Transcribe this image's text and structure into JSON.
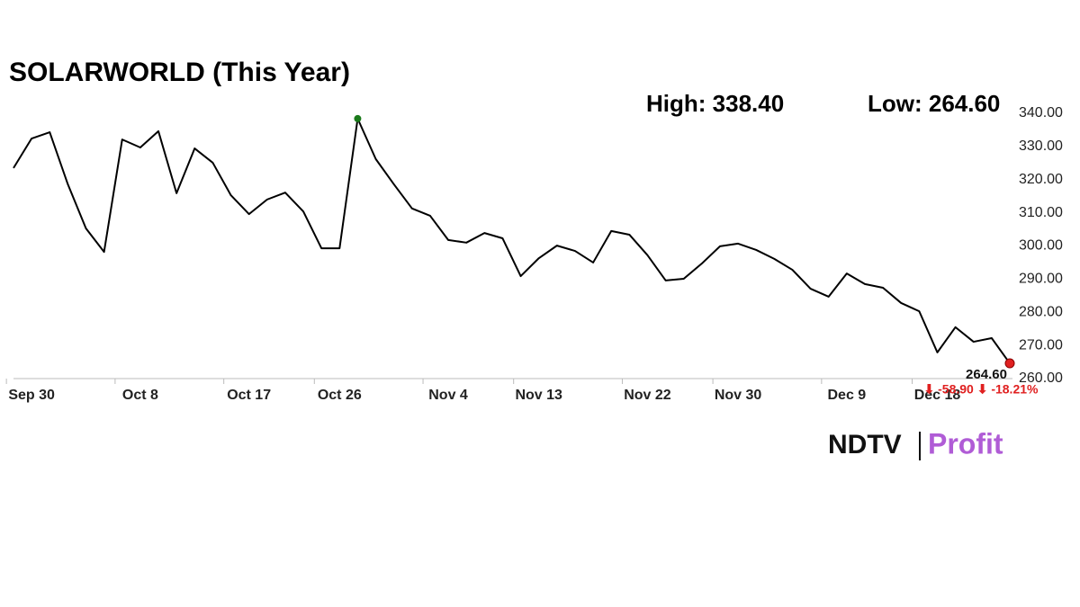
{
  "chart_data": {
    "type": "line",
    "title": "SOLARWORLD (This Year)",
    "high_label": "High: 338.40",
    "low_label": "Low: 264.60",
    "last_label": "264.60",
    "change_label": "⬇ -58.90 ⬇ -18.21%",
    "brand": [
      "NDTV",
      "Profit"
    ],
    "categories": [
      null,
      "Sep 30",
      null,
      null,
      null,
      null,
      null,
      "Oct 8",
      null,
      null,
      null,
      null,
      null,
      "Oct 17",
      null,
      null,
      null,
      null,
      "Oct 26",
      null,
      null,
      null,
      null,
      null,
      "Nov 4",
      null,
      null,
      null,
      null,
      "Nov 13",
      null,
      null,
      null,
      null,
      null,
      "Nov 22",
      null,
      null,
      null,
      null,
      "Nov 30",
      null,
      null,
      null,
      null,
      null,
      "Dec 9",
      null,
      null,
      null,
      null,
      "Dec 18",
      null,
      null,
      null,
      null
    ],
    "series": [
      {
        "name": "SOLARWORLD",
        "color": "#000000",
        "values": [
          323.5,
          332.4,
          334.3,
          318.6,
          305.3,
          298.2,
          332.1,
          329.7,
          334.6,
          315.9,
          329.4,
          325.1,
          315.3,
          309.6,
          314.0,
          316.1,
          310.4,
          299.3,
          299.3,
          338.4,
          326.2,
          318.6,
          311.3,
          309.1,
          301.8,
          301.0,
          303.9,
          302.3,
          290.9,
          296.3,
          300.1,
          298.5,
          295.0,
          304.5,
          303.4,
          297.2,
          289.6,
          290.1,
          294.7,
          299.9,
          300.7,
          298.8,
          296.1,
          292.8,
          287.1,
          284.7,
          291.7,
          288.5,
          287.4,
          282.8,
          280.3,
          267.9,
          275.5,
          271.1,
          272.2,
          264.6
        ]
      }
    ],
    "high_index": 19,
    "high_color": "#1a7a1a",
    "last_color": "#e02020",
    "ylim": [
      260,
      340
    ],
    "yticks": [
      {
        "value": 260,
        "label": "260.00"
      },
      {
        "value": 270,
        "label": "270.00"
      },
      {
        "value": 280,
        "label": "280.00"
      },
      {
        "value": 290,
        "label": "290.00"
      },
      {
        "value": 300,
        "label": "300.00"
      },
      {
        "value": 310,
        "label": "310.00"
      },
      {
        "value": 320,
        "label": "320.00"
      },
      {
        "value": 330,
        "label": "330.00"
      },
      {
        "value": 340,
        "label": "340.00"
      }
    ],
    "grid": false
  }
}
